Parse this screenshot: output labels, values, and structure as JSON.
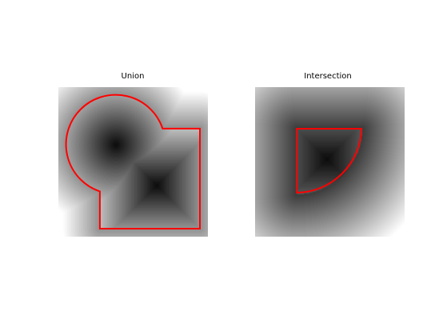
{
  "figure": {
    "panels": [
      {
        "id": "union",
        "title": "Union",
        "operation": "union"
      },
      {
        "id": "intersection",
        "title": "Intersection",
        "operation": "intersection"
      }
    ],
    "colors": {
      "outline": "#ff0000",
      "background": "#ffffff"
    },
    "colormap": "gray"
  }
}
